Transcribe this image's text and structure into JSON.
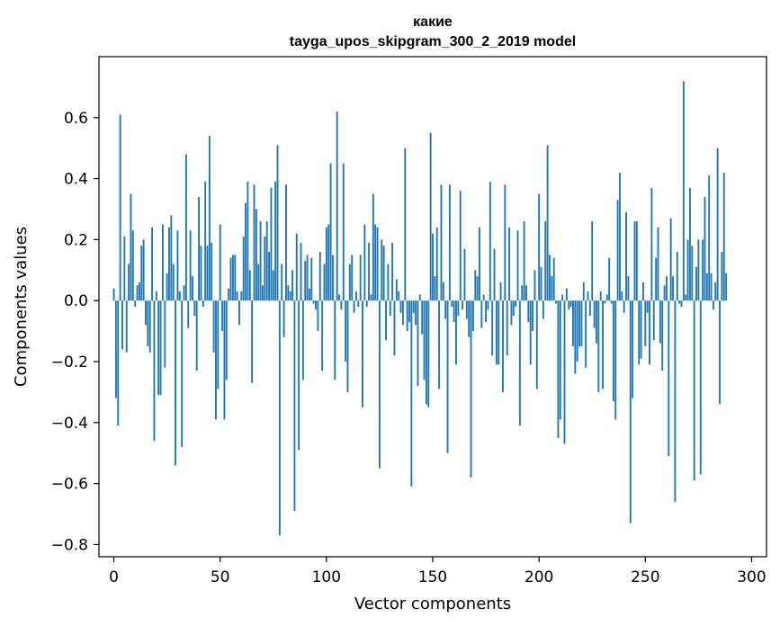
{
  "chart_data": {
    "type": "bar",
    "title_line1": "какие",
    "title_line2": "tayga_upos_skipgram_300_2_2019 model",
    "xlabel": "Vector components",
    "ylabel": "Components values",
    "xlim": [
      -7,
      307
    ],
    "ylim": [
      -0.84,
      0.8
    ],
    "xticks": [
      0,
      50,
      100,
      150,
      200,
      250,
      300
    ],
    "xtick_labels": [
      "0",
      "50",
      "100",
      "150",
      "200",
      "250",
      "300"
    ],
    "yticks": [
      -0.8,
      -0.6,
      -0.4,
      -0.2,
      0.0,
      0.2,
      0.4,
      0.6
    ],
    "ytick_labels": [
      "−0.8",
      "−0.6",
      "−0.4",
      "−0.2",
      "0.0",
      "0.2",
      "0.4",
      "0.6"
    ],
    "bar_color": "#1f77b4",
    "values": [
      0.04,
      -0.32,
      -0.41,
      0.61,
      -0.16,
      0.21,
      -0.17,
      0.12,
      0.35,
      0.23,
      -0.02,
      0.05,
      0.06,
      0.18,
      0.2,
      -0.08,
      -0.15,
      -0.17,
      0.24,
      -0.46,
      0.03,
      -0.31,
      -0.31,
      0.25,
      -0.22,
      0.09,
      0.24,
      0.28,
      0.12,
      -0.54,
      0.23,
      0.03,
      -0.48,
      0.05,
      0.48,
      -0.09,
      0.23,
      0.08,
      -0.05,
      -0.23,
      0.34,
      0.18,
      -0.02,
      0.39,
      0.18,
      0.54,
      0.19,
      -0.17,
      -0.39,
      -0.29,
      0.25,
      -0.1,
      -0.39,
      -0.26,
      0.04,
      0.14,
      0.15,
      0.15,
      0.03,
      -0.08,
      0.03,
      0.21,
      0.32,
      0.39,
      0.1,
      -0.27,
      0.38,
      0.3,
      0.12,
      0.26,
      0.05,
      0.21,
      0.26,
      0.16,
      0.37,
      0.1,
      0.39,
      0.51,
      -0.77,
      0.12,
      -0.12,
      0.38,
      0.05,
      0.03,
      0.1,
      -0.69,
      0.22,
      -0.49,
      0.19,
      -0.26,
      0.13,
      0.15,
      0.04,
      0.14,
      -0.01,
      -0.03,
      -0.1,
      0.16,
      -0.23,
      0.12,
      0.24,
      0.25,
      0.45,
      0.15,
      -0.26,
      0.62,
      0.02,
      -0.03,
      0.45,
      -0.2,
      -0.3,
      0.12,
      0.15,
      -0.04,
      0.03,
      -0.02,
      0.15,
      -0.35,
      0.25,
      -0.02,
      0.19,
      0.02,
      0.35,
      0.25,
      0.24,
      -0.55,
      0.2,
      0.18,
      -0.13,
      0.12,
      -0.05,
      0.19,
      -0.18,
      0.07,
      0.03,
      -0.04,
      -0.08,
      0.5,
      -0.1,
      -0.07,
      -0.61,
      -0.04,
      -0.08,
      -0.28,
      0.02,
      -0.11,
      -0.26,
      -0.34,
      -0.35,
      0.55,
      0.22,
      0.08,
      0.24,
      -0.29,
      0.38,
      0.06,
      -0.06,
      -0.5,
      0.38,
      -0.02,
      -0.07,
      -0.21,
      -0.05,
      0.36,
      -0.03,
      0.17,
      -0.06,
      -0.12,
      -0.58,
      -0.1,
      0.1,
      0.08,
      0.24,
      -0.09,
      0.02,
      -0.07,
      -0.03,
      0.39,
      -0.18,
      0.17,
      -0.21,
      -0.21,
      0.06,
      -0.3,
      0.38,
      -0.18,
      0.24,
      -0.08,
      -0.05,
      -0.02,
      0.23,
      -0.41,
      0.05,
      0.26,
      0.05,
      -0.07,
      -0.21,
      -0.1,
      0.1,
      -0.29,
      0.35,
      0.11,
      -0.06,
      0.26,
      0.51,
      0.15,
      0.08,
      0.14,
      -0.01,
      -0.45,
      -0.39,
      0.02,
      -0.47,
      0.04,
      -0.03,
      -0.02,
      -0.15,
      -0.24,
      -0.2,
      -0.15,
      -0.15,
      0.06,
      -0.22,
      0.03,
      -0.05,
      0.26,
      -0.09,
      -0.14,
      -0.3,
      0.03,
      -0.29,
      -0.01,
      0.02,
      0.14,
      -0.01,
      -0.33,
      -0.39,
      0.33,
      0.42,
      0.03,
      -0.04,
      0.29,
      0.08,
      -0.73,
      -0.32,
      0.26,
      0.26,
      -0.21,
      -0.19,
      0.06,
      -0.15,
      -0.04,
      -0.21,
      0.37,
      -0.13,
      0.14,
      0.24,
      -0.14,
      -0.23,
      0.05,
      0.08,
      -0.51,
      0.27,
      0.08,
      -0.66,
      0.16,
      -0.01,
      -0.02,
      0.72,
      0.02,
      0.2,
      0.37,
      0.18,
      -0.59,
      0.11,
      0.2,
      -0.57,
      0.2,
      0.34,
      0.09,
      0.41,
      0.09,
      -0.03,
      0.06,
      0.5,
      -0.34,
      0.16,
      0.42,
      0.09
    ]
  }
}
